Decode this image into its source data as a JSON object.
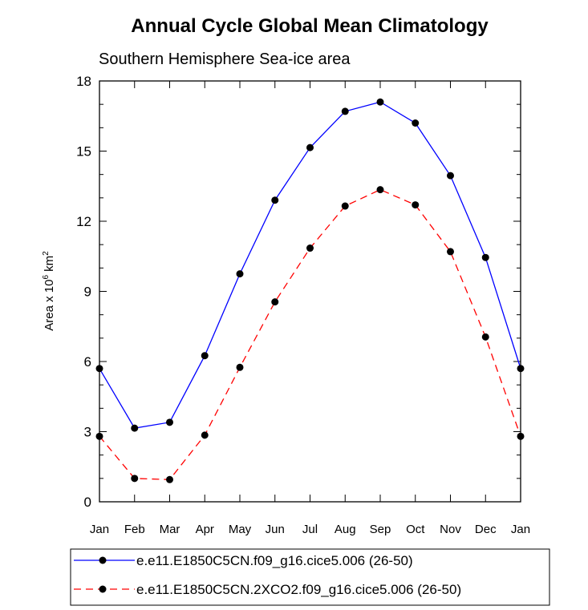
{
  "chart_data": {
    "type": "line",
    "title": "Annual Cycle Global Mean Climatology",
    "subtitle": "Southern Hemisphere Sea-ice area",
    "ylabel_main": "Area x 10",
    "ylabel_exp": "6",
    "ylabel_unit": " km",
    "ylabel_unit_exp": "2",
    "xlabel": "",
    "categories": [
      "Jan",
      "Feb",
      "Mar",
      "Apr",
      "May",
      "Jun",
      "Jul",
      "Aug",
      "Sep",
      "Oct",
      "Nov",
      "Dec",
      "Jan"
    ],
    "ylim": [
      0,
      18
    ],
    "yticks": [
      0,
      3,
      6,
      9,
      12,
      15,
      18
    ],
    "grid": false,
    "legend_position": "bottom",
    "series": [
      {
        "name": "e.e11.E1850C5CN.f09_g16.cice5.006 (26-50)",
        "color": "#0000ff",
        "dash": "solid",
        "values": [
          5.7,
          3.15,
          3.4,
          6.25,
          9.75,
          12.9,
          15.15,
          16.7,
          17.1,
          16.2,
          13.95,
          10.45,
          5.7
        ]
      },
      {
        "name": "e.e11.E1850C5CN.2XCO2.f09_g16.cice5.006 (26-50)",
        "color": "#ff0000",
        "dash": "dashed",
        "values": [
          2.8,
          1.0,
          0.95,
          2.85,
          5.75,
          8.55,
          10.85,
          12.65,
          13.35,
          12.7,
          10.7,
          7.05,
          2.8
        ]
      }
    ]
  }
}
